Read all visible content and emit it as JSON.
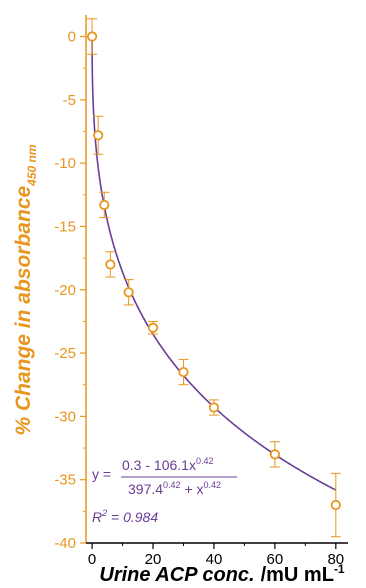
{
  "chart_data": {
    "type": "scatter",
    "xlabel_main": "Urine ACP conc.",
    "xlabel_unit": "/mU mL",
    "xlabel_unit_exp": "-1",
    "ylabel_main": "% Change in absorbance",
    "ylabel_sub": "450 nm",
    "xlim": [
      -2,
      84
    ],
    "ylim": [
      -40,
      1.7
    ],
    "x_ticks": [
      0,
      20,
      40,
      60,
      80
    ],
    "x_tick_labels": [
      "0",
      "20",
      "40",
      "60",
      "80"
    ],
    "y_ticks": [
      0,
      -5,
      -10,
      -15,
      -20,
      -25,
      -30,
      -35,
      -40
    ],
    "y_tick_labels": [
      "0",
      "-5",
      "-10",
      "-15",
      "-20",
      "-25",
      "-30",
      "-35",
      "-40"
    ],
    "grid": false,
    "marker_color": "#e8961e",
    "fit_color": "#6a3d98",
    "axis_color_y": "#e8961e",
    "points": [
      {
        "x": 0,
        "y": 0.0,
        "err": 1.4
      },
      {
        "x": 2,
        "y": -7.8,
        "err": 1.5
      },
      {
        "x": 4,
        "y": -13.3,
        "err": 1.0
      },
      {
        "x": 6,
        "y": -18.0,
        "err": 1.0
      },
      {
        "x": 12,
        "y": -20.2,
        "err": 1.0
      },
      {
        "x": 20,
        "y": -23.0,
        "err": 0.5
      },
      {
        "x": 30,
        "y": -26.5,
        "err": 1.0
      },
      {
        "x": 40,
        "y": -29.3,
        "err": 0.6
      },
      {
        "x": 60,
        "y": -33.0,
        "err": 1.0
      },
      {
        "x": 80,
        "y": -37.0,
        "err": 2.5
      }
    ],
    "fit": {
      "a": 0.3,
      "b": 106.1,
      "n": 0.42,
      "k": 397.4,
      "eq_prefix": "y = ",
      "numerator": "0.3 - 106.1x",
      "numerator_exp": "0.42",
      "denominator": "397.4",
      "denominator_exp1": "0.42",
      "denominator_mid": " + x",
      "denominator_exp2": "0.42",
      "r2_label": "R",
      "r2_exp": "2",
      "r2_value": " = 0.984"
    }
  }
}
